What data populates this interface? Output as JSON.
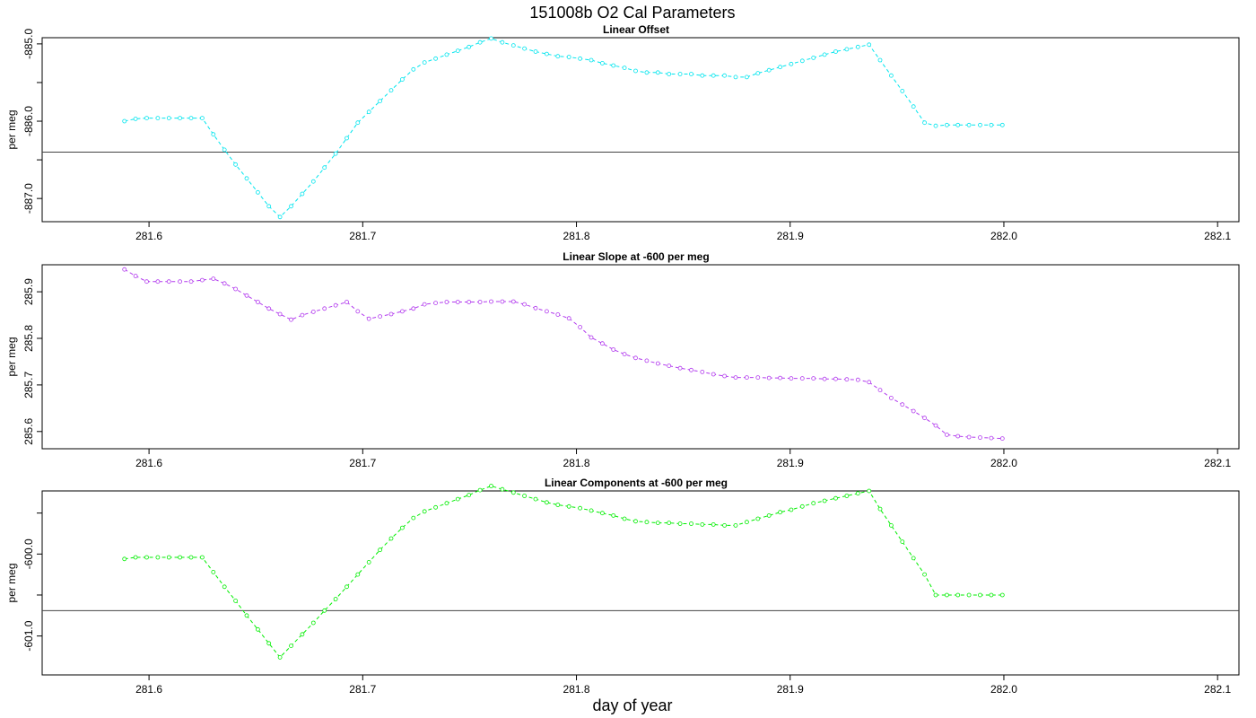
{
  "figure": {
    "title": "151008b   O2 Cal Parameters",
    "xlabel": "day of year"
  },
  "chart_data": [
    {
      "type": "line",
      "title": "Linear Offset",
      "ylabel": "per meg",
      "color": "#00e5ee",
      "xlim": [
        281.55,
        282.11
      ],
      "ylim": [
        -887.3,
        -884.92
      ],
      "xticks": [
        281.6,
        281.7,
        281.8,
        281.9,
        282.0,
        282.1
      ],
      "xtick_labels": [
        "281.6",
        "281.7",
        "281.8",
        "281.9",
        "282.0",
        "282.1"
      ],
      "yticks": [
        -887.0,
        -886.5,
        -886.0,
        -885.5,
        -885.0
      ],
      "ytick_labels": [
        "-887.0",
        "",
        "-886.0",
        "",
        "-885.0"
      ],
      "hline": -886.4,
      "x_start": 281.5885,
      "x_step": 0.0052,
      "values": [
        -886.0,
        -885.97,
        -885.96,
        -885.96,
        -885.96,
        -885.96,
        -885.96,
        -885.96,
        -886.17,
        -886.37,
        -886.56,
        -886.74,
        -886.92,
        -887.1,
        -887.24,
        -887.1,
        -886.94,
        -886.78,
        -886.6,
        -886.42,
        -886.22,
        -886.02,
        -885.88,
        -885.74,
        -885.6,
        -885.46,
        -885.33,
        -885.24,
        -885.19,
        -885.14,
        -885.09,
        -885.04,
        -884.98,
        -884.93,
        -884.98,
        -885.02,
        -885.06,
        -885.1,
        -885.13,
        -885.16,
        -885.17,
        -885.19,
        -885.21,
        -885.25,
        -885.28,
        -885.31,
        -885.35,
        -885.37,
        -885.37,
        -885.39,
        -885.39,
        -885.39,
        -885.41,
        -885.41,
        -885.41,
        -885.43,
        -885.43,
        -885.38,
        -885.34,
        -885.3,
        -885.26,
        -885.22,
        -885.18,
        -885.14,
        -885.1,
        -885.07,
        -885.04,
        -885.01,
        -885.21,
        -885.41,
        -885.61,
        -885.81,
        -886.02,
        -886.06,
        -886.05,
        -886.05,
        -886.05,
        -886.05,
        -886.05,
        -886.05
      ]
    },
    {
      "type": "line",
      "title": "Linear Slope at -600 per meg",
      "ylabel": "per meg",
      "color": "#b23aee",
      "xlim": [
        281.55,
        282.11
      ],
      "ylim": [
        285.563,
        285.958
      ],
      "xticks": [
        281.6,
        281.7,
        281.8,
        281.9,
        282.0,
        282.1
      ],
      "xtick_labels": [
        "281.6",
        "281.7",
        "281.8",
        "281.9",
        "282.0",
        "282.1"
      ],
      "yticks": [
        285.6,
        285.7,
        285.8,
        285.9
      ],
      "ytick_labels": [
        "285.6",
        "285.7",
        "285.8",
        "285.9"
      ],
      "hline": null,
      "x_start": 281.5885,
      "x_step": 0.0052,
      "values": [
        285.948,
        285.934,
        285.922,
        285.922,
        285.922,
        285.922,
        285.922,
        285.925,
        285.928,
        285.918,
        285.906,
        285.892,
        285.878,
        285.864,
        285.852,
        285.84,
        285.85,
        285.857,
        285.864,
        285.871,
        285.878,
        285.858,
        285.842,
        285.847,
        285.852,
        285.858,
        285.864,
        285.873,
        285.876,
        285.878,
        285.878,
        285.878,
        285.878,
        285.879,
        285.879,
        285.879,
        285.873,
        285.865,
        285.858,
        285.851,
        285.843,
        285.824,
        285.802,
        285.789,
        285.776,
        285.766,
        285.758,
        285.752,
        285.746,
        285.741,
        285.736,
        285.732,
        285.728,
        285.723,
        285.719,
        285.716,
        285.716,
        285.716,
        285.715,
        285.715,
        285.714,
        285.714,
        285.714,
        285.713,
        285.713,
        285.712,
        285.711,
        285.706,
        285.689,
        285.672,
        285.658,
        285.644,
        285.629,
        285.613,
        285.593,
        285.59,
        285.588,
        285.587,
        285.586,
        285.585
      ]
    },
    {
      "type": "line",
      "title": "Linear Components at -600 per meg",
      "ylabel": "per meg",
      "color": "#00ee00",
      "xlim": [
        281.55,
        282.11
      ],
      "ylim": [
        -601.475,
        -599.23
      ],
      "xticks": [
        281.6,
        281.7,
        281.8,
        281.9,
        282.0,
        282.1
      ],
      "xtick_labels": [
        "281.6",
        "281.7",
        "281.8",
        "281.9",
        "282.0",
        "282.1"
      ],
      "yticks": [
        -601.0,
        -600.5,
        -600.0,
        -599.5
      ],
      "ytick_labels": [
        "-601.0",
        "",
        "-600.0",
        ""
      ],
      "hline": -600.69,
      "x_start": 281.5885,
      "x_step": 0.0052,
      "values": [
        -600.06,
        -600.04,
        -600.04,
        -600.04,
        -600.04,
        -600.04,
        -600.04,
        -600.04,
        -600.22,
        -600.4,
        -600.57,
        -600.75,
        -600.92,
        -601.09,
        -601.26,
        -601.12,
        -600.98,
        -600.84,
        -600.69,
        -600.55,
        -600.4,
        -600.25,
        -600.1,
        -599.95,
        -599.81,
        -599.68,
        -599.56,
        -599.48,
        -599.43,
        -599.38,
        -599.33,
        -599.28,
        -599.22,
        -599.17,
        -599.21,
        -599.25,
        -599.29,
        -599.33,
        -599.37,
        -599.4,
        -599.42,
        -599.44,
        -599.47,
        -599.5,
        -599.53,
        -599.57,
        -599.6,
        -599.61,
        -599.62,
        -599.62,
        -599.63,
        -599.63,
        -599.64,
        -599.64,
        -599.65,
        -599.65,
        -599.61,
        -599.57,
        -599.53,
        -599.49,
        -599.46,
        -599.42,
        -599.38,
        -599.35,
        -599.32,
        -599.29,
        -599.26,
        -599.23,
        -599.45,
        -599.65,
        -599.85,
        -600.05,
        -600.25,
        -600.5,
        -600.5,
        -600.5,
        -600.5,
        -600.5,
        -600.5,
        -600.5
      ]
    }
  ]
}
